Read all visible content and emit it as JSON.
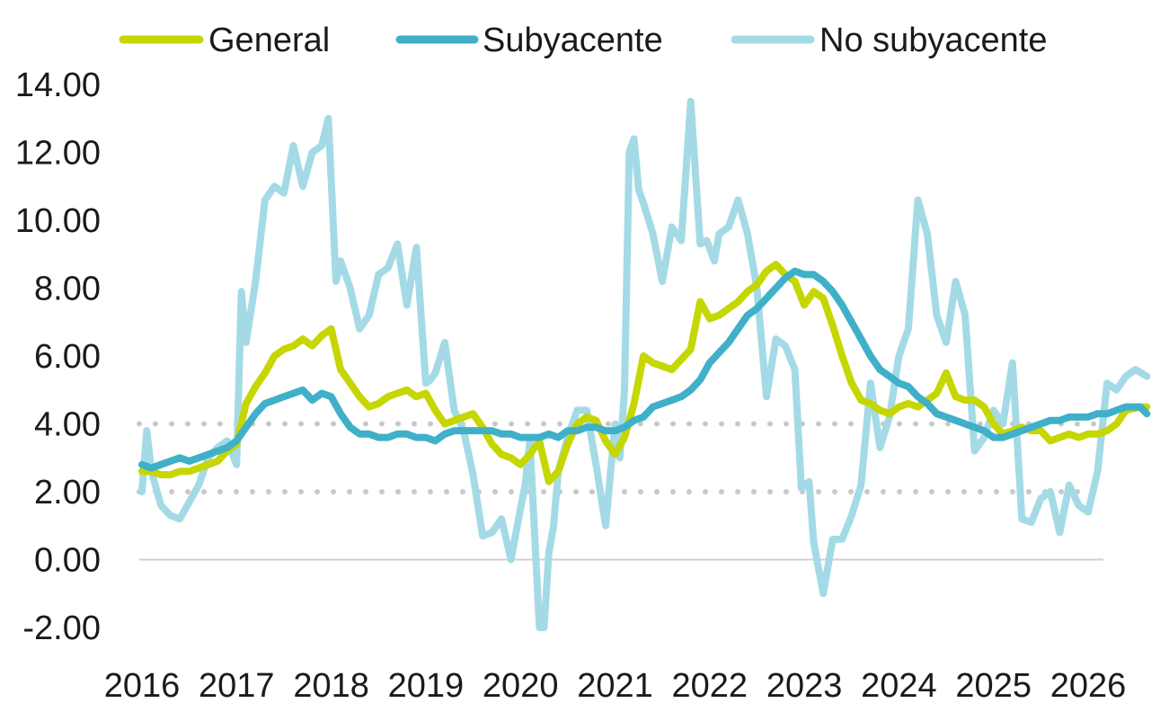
{
  "chart_data": {
    "type": "line",
    "title": "",
    "xlabel": "",
    "ylabel": "",
    "ylim": [
      -2,
      14
    ],
    "xlim": [
      2016,
      2026.62
    ],
    "y_ticks": [
      "14.00",
      "12.00",
      "10.00",
      "8.00",
      "6.00",
      "4.00",
      "2.00",
      "0.00",
      "-2.00"
    ],
    "y_tick_values": [
      14,
      12,
      10,
      8,
      6,
      4,
      2,
      0,
      -2
    ],
    "x_ticks": [
      "2016",
      "2017",
      "2018",
      "2019",
      "2020",
      "2021",
      "2022",
      "2023",
      "2024",
      "2025",
      "2026"
    ],
    "x_tick_values": [
      2016,
      2017,
      2018,
      2019,
      2020,
      2021,
      2022,
      2023,
      2024,
      2025,
      2026
    ],
    "reference_lines": [
      4,
      2
    ],
    "grid": false,
    "legend_position": "top",
    "series": [
      {
        "name": "General",
        "color": "#c5d600",
        "x": [
          2016.0,
          2016.1,
          2016.2,
          2016.3,
          2016.4,
          2016.5,
          2016.6,
          2016.7,
          2016.8,
          2016.9,
          2017.0,
          2017.1,
          2017.2,
          2017.3,
          2017.4,
          2017.5,
          2017.6,
          2017.7,
          2017.8,
          2017.9,
          2018.0,
          2018.1,
          2018.2,
          2018.3,
          2018.4,
          2018.5,
          2018.6,
          2018.7,
          2018.8,
          2018.9,
          2019.0,
          2019.1,
          2019.2,
          2019.3,
          2019.4,
          2019.5,
          2019.6,
          2019.7,
          2019.8,
          2019.9,
          2020.0,
          2020.1,
          2020.2,
          2020.3,
          2020.4,
          2020.5,
          2020.6,
          2020.7,
          2020.8,
          2020.9,
          2021.0,
          2021.1,
          2021.2,
          2021.3,
          2021.4,
          2021.5,
          2021.6,
          2021.7,
          2021.8,
          2021.9,
          2022.0,
          2022.1,
          2022.2,
          2022.3,
          2022.4,
          2022.5,
          2022.6,
          2022.7,
          2022.8,
          2022.9,
          2023.0,
          2023.1,
          2023.2,
          2023.3,
          2023.4,
          2023.5,
          2023.6,
          2023.7,
          2023.8,
          2023.9,
          2024.0,
          2024.1,
          2024.2,
          2024.3,
          2024.4,
          2024.5,
          2024.6,
          2024.7,
          2024.8,
          2024.9,
          2025.0,
          2025.1,
          2025.2,
          2025.3,
          2025.4,
          2025.5,
          2025.6,
          2025.7,
          2025.8,
          2025.9,
          2026.0,
          2026.1,
          2026.2,
          2026.3,
          2026.4,
          2026.55,
          2026.62
        ],
        "values": [
          2.6,
          2.6,
          2.5,
          2.5,
          2.6,
          2.6,
          2.7,
          2.8,
          2.9,
          3.2,
          3.4,
          4.6,
          5.1,
          5.5,
          6.0,
          6.2,
          6.3,
          6.5,
          6.3,
          6.6,
          6.8,
          5.6,
          5.2,
          4.8,
          4.5,
          4.6,
          4.8,
          4.9,
          5.0,
          4.8,
          4.9,
          4.4,
          4.0,
          4.1,
          4.2,
          4.3,
          3.9,
          3.4,
          3.1,
          3.0,
          2.8,
          3.1,
          3.5,
          2.3,
          2.6,
          3.4,
          4.0,
          4.2,
          4.1,
          3.5,
          3.1,
          3.6,
          4.6,
          6.0,
          5.8,
          5.7,
          5.6,
          5.9,
          6.2,
          7.6,
          7.1,
          7.2,
          7.4,
          7.6,
          7.9,
          8.1,
          8.5,
          8.7,
          8.4,
          8.2,
          7.5,
          7.9,
          7.7,
          6.9,
          6.0,
          5.2,
          4.7,
          4.6,
          4.4,
          4.3,
          4.5,
          4.6,
          4.5,
          4.7,
          4.9,
          5.5,
          4.8,
          4.7,
          4.7,
          4.5,
          4.0,
          3.7,
          3.8,
          3.9,
          3.8,
          3.8,
          3.5,
          3.6,
          3.7,
          3.6,
          3.7,
          3.7,
          3.8,
          4.0,
          4.4,
          4.5,
          4.5
        ]
      },
      {
        "name": "Subyacente",
        "color": "#3fb0c8",
        "x": [
          2016.0,
          2016.1,
          2016.2,
          2016.3,
          2016.4,
          2016.5,
          2016.6,
          2016.7,
          2016.8,
          2016.9,
          2017.0,
          2017.1,
          2017.2,
          2017.3,
          2017.4,
          2017.5,
          2017.6,
          2017.7,
          2017.8,
          2017.9,
          2018.0,
          2018.1,
          2018.2,
          2018.3,
          2018.4,
          2018.5,
          2018.6,
          2018.7,
          2018.8,
          2018.9,
          2019.0,
          2019.1,
          2019.2,
          2019.3,
          2019.4,
          2019.5,
          2019.6,
          2019.7,
          2019.8,
          2019.9,
          2020.0,
          2020.1,
          2020.2,
          2020.3,
          2020.4,
          2020.5,
          2020.6,
          2020.7,
          2020.8,
          2020.9,
          2021.0,
          2021.1,
          2021.2,
          2021.3,
          2021.4,
          2021.5,
          2021.6,
          2021.7,
          2021.8,
          2021.9,
          2022.0,
          2022.1,
          2022.2,
          2022.3,
          2022.4,
          2022.5,
          2022.6,
          2022.7,
          2022.8,
          2022.9,
          2023.0,
          2023.1,
          2023.2,
          2023.3,
          2023.4,
          2023.5,
          2023.6,
          2023.7,
          2023.8,
          2023.9,
          2024.0,
          2024.1,
          2024.2,
          2024.3,
          2024.4,
          2024.5,
          2024.6,
          2024.7,
          2024.8,
          2024.9,
          2025.0,
          2025.1,
          2025.2,
          2025.3,
          2025.4,
          2025.5,
          2025.6,
          2025.7,
          2025.8,
          2025.9,
          2026.0,
          2026.1,
          2026.2,
          2026.3,
          2026.4,
          2026.55,
          2026.62
        ],
        "values": [
          2.8,
          2.7,
          2.8,
          2.9,
          3.0,
          2.9,
          3.0,
          3.1,
          3.2,
          3.3,
          3.5,
          3.9,
          4.3,
          4.6,
          4.7,
          4.8,
          4.9,
          5.0,
          4.7,
          4.9,
          4.8,
          4.3,
          3.9,
          3.7,
          3.7,
          3.6,
          3.6,
          3.7,
          3.7,
          3.6,
          3.6,
          3.5,
          3.7,
          3.8,
          3.8,
          3.8,
          3.8,
          3.8,
          3.7,
          3.7,
          3.6,
          3.6,
          3.6,
          3.7,
          3.6,
          3.8,
          3.8,
          3.9,
          3.9,
          3.8,
          3.8,
          3.9,
          4.1,
          4.2,
          4.5,
          4.6,
          4.7,
          4.8,
          5.0,
          5.3,
          5.8,
          6.1,
          6.4,
          6.8,
          7.2,
          7.4,
          7.7,
          8.0,
          8.3,
          8.5,
          8.4,
          8.4,
          8.2,
          7.9,
          7.5,
          7.0,
          6.5,
          6.0,
          5.6,
          5.4,
          5.2,
          5.1,
          4.8,
          4.6,
          4.3,
          4.2,
          4.1,
          4.0,
          3.9,
          3.8,
          3.6,
          3.6,
          3.7,
          3.8,
          3.9,
          4.0,
          4.1,
          4.1,
          4.2,
          4.2,
          4.2,
          4.3,
          4.3,
          4.4,
          4.5,
          4.5,
          4.3
        ]
      },
      {
        "name": "No subyacente",
        "color": "#a4dae6",
        "x": [
          2016.0,
          2016.05,
          2016.1,
          2016.2,
          2016.3,
          2016.4,
          2016.5,
          2016.6,
          2016.7,
          2016.8,
          2016.9,
          2017.0,
          2017.05,
          2017.1,
          2017.2,
          2017.3,
          2017.4,
          2017.5,
          2017.6,
          2017.7,
          2017.8,
          2017.9,
          2017.97,
          2018.05,
          2018.1,
          2018.2,
          2018.3,
          2018.4,
          2018.5,
          2018.6,
          2018.7,
          2018.8,
          2018.9,
          2019.0,
          2019.05,
          2019.1,
          2019.2,
          2019.3,
          2019.4,
          2019.5,
          2019.6,
          2019.7,
          2019.8,
          2019.9,
          2020.0,
          2020.05,
          2020.1,
          2020.2,
          2020.25,
          2020.3,
          2020.35,
          2020.4,
          2020.5,
          2020.6,
          2020.7,
          2020.8,
          2020.9,
          2021.0,
          2021.05,
          2021.1,
          2021.15,
          2021.2,
          2021.25,
          2021.3,
          2021.4,
          2021.5,
          2021.6,
          2021.7,
          2021.8,
          2021.9,
          2021.97,
          2022.05,
          2022.1,
          2022.2,
          2022.3,
          2022.4,
          2022.5,
          2022.6,
          2022.7,
          2022.8,
          2022.9,
          2022.97,
          2023.05,
          2023.1,
          2023.2,
          2023.3,
          2023.4,
          2023.5,
          2023.6,
          2023.7,
          2023.8,
          2023.9,
          2024.0,
          2024.1,
          2024.2,
          2024.3,
          2024.4,
          2024.5,
          2024.6,
          2024.7,
          2024.8,
          2024.9,
          2025.0,
          2025.1,
          2025.2,
          2025.3,
          2025.4,
          2025.5,
          2025.6,
          2025.7,
          2025.8,
          2025.9,
          2026.0,
          2026.1,
          2026.2,
          2026.3,
          2026.4,
          2026.5,
          2026.62
        ],
        "values": [
          2.0,
          3.8,
          2.6,
          1.6,
          1.3,
          1.2,
          1.7,
          2.2,
          3.0,
          3.3,
          3.5,
          2.8,
          7.9,
          6.4,
          8.2,
          10.6,
          11.0,
          10.8,
          12.2,
          11.0,
          12.0,
          12.2,
          13.0,
          8.2,
          8.8,
          8.0,
          6.8,
          7.2,
          8.4,
          8.6,
          9.3,
          7.5,
          9.2,
          5.2,
          5.3,
          5.5,
          6.4,
          4.4,
          3.8,
          2.5,
          0.7,
          0.8,
          1.2,
          0.0,
          1.5,
          2.2,
          3.5,
          -2.0,
          -2.0,
          0.2,
          1.0,
          2.6,
          3.6,
          4.4,
          4.4,
          2.8,
          1.0,
          4.0,
          3.0,
          5.0,
          12.0,
          12.4,
          10.9,
          10.5,
          9.6,
          8.2,
          9.8,
          9.4,
          13.5,
          9.3,
          9.4,
          8.8,
          9.6,
          9.8,
          10.6,
          9.6,
          8.0,
          4.8,
          6.5,
          6.3,
          5.6,
          2.1,
          2.3,
          0.5,
          -1.0,
          0.6,
          0.6,
          1.3,
          2.2,
          5.2,
          3.3,
          4.2,
          6.0,
          6.8,
          10.6,
          9.6,
          7.2,
          6.4,
          8.2,
          7.2,
          3.2,
          3.6,
          4.4,
          4.0,
          5.8,
          1.2,
          1.1,
          1.8,
          2.0,
          0.8,
          2.2,
          1.6,
          1.4,
          2.6,
          5.2,
          5.0,
          5.4,
          5.6,
          5.4
        ]
      }
    ]
  }
}
